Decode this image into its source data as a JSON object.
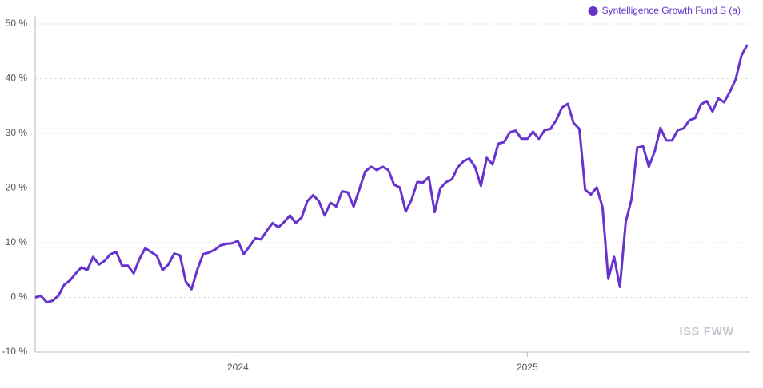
{
  "chart_data": {
    "type": "line",
    "x": [
      2023.3,
      2023.32,
      2023.34,
      2023.36,
      2023.38,
      2023.4,
      2023.42,
      2023.44,
      2023.46,
      2023.48,
      2023.5,
      2023.52,
      2023.54,
      2023.56,
      2023.58,
      2023.6,
      2023.62,
      2023.64,
      2023.66,
      2023.68,
      2023.7,
      2023.72,
      2023.74,
      2023.76,
      2023.78,
      2023.8,
      2023.82,
      2023.84,
      2023.86,
      2023.88,
      2023.9,
      2023.92,
      2023.94,
      2023.96,
      2023.98,
      2024,
      2024.02,
      2024.04,
      2024.06,
      2024.08,
      2024.1,
      2024.12,
      2024.14,
      2024.16,
      2024.18,
      2024.2,
      2024.22,
      2024.24,
      2024.26,
      2024.28,
      2024.3,
      2024.32,
      2024.34,
      2024.36,
      2024.38,
      2024.4,
      2024.42,
      2024.44,
      2024.46,
      2024.48,
      2024.5,
      2024.52,
      2024.54,
      2024.56,
      2024.58,
      2024.6,
      2024.62,
      2024.64,
      2024.66,
      2024.68,
      2024.7,
      2024.72,
      2024.74,
      2024.76,
      2024.78,
      2024.8,
      2024.82,
      2024.84,
      2024.86,
      2024.88,
      2024.9,
      2024.92,
      2024.94,
      2024.96,
      2024.98,
      2025,
      2025.02,
      2025.04,
      2025.06,
      2025.08,
      2025.1,
      2025.12,
      2025.14,
      2025.16,
      2025.18,
      2025.2,
      2025.22,
      2025.24,
      2025.26,
      2025.28,
      2025.3,
      2025.32,
      2025.34,
      2025.36,
      2025.38,
      2025.4,
      2025.42,
      2025.44,
      2025.46,
      2025.48,
      2025.5,
      2025.52,
      2025.54,
      2025.56,
      2025.58,
      2025.6,
      2025.62,
      2025.64,
      2025.66,
      2025.68,
      2025.7,
      2025.72,
      2025.74,
      2025.76
    ],
    "series": [
      {
        "name": "Syntelligence Growth Fund S (a)",
        "color": "#6633cc",
        "values": [
          0.0,
          0.3,
          -0.9,
          -0.6,
          0.3,
          2.3,
          3.1,
          4.4,
          5.5,
          5.0,
          7.4,
          6.0,
          6.7,
          7.9,
          8.3,
          5.8,
          5.8,
          4.4,
          7.0,
          9.0,
          8.3,
          7.6,
          5.0,
          6.0,
          8.0,
          7.7,
          2.9,
          1.5,
          5.1,
          7.9,
          8.2,
          8.7,
          9.5,
          9.8,
          9.9,
          10.3,
          7.9,
          9.3,
          10.8,
          10.6,
          12.2,
          13.6,
          12.8,
          13.8,
          15.0,
          13.6,
          14.6,
          17.6,
          18.7,
          17.6,
          15.0,
          17.3,
          16.6,
          19.4,
          19.2,
          16.6,
          19.8,
          23.0,
          23.9,
          23.3,
          23.9,
          23.3,
          20.6,
          20.1,
          15.7,
          17.8,
          21.1,
          21.0,
          22.0,
          15.6,
          20.0,
          21.1,
          21.6,
          23.8,
          24.9,
          25.4,
          23.8,
          20.4,
          25.5,
          24.3,
          28.1,
          28.4,
          30.2,
          30.5,
          29.0,
          29.0,
          30.3,
          29.0,
          30.6,
          30.8,
          32.4,
          34.7,
          35.4,
          31.9,
          30.8,
          19.7,
          18.8,
          20.1,
          16.5,
          3.4,
          7.4,
          1.9,
          13.8,
          17.9,
          27.4,
          27.6,
          23.9,
          26.7,
          31.0,
          28.7,
          28.7,
          30.6,
          30.9,
          32.4,
          32.8,
          35.3,
          35.9,
          34.0,
          36.4,
          35.7,
          37.6,
          39.9,
          44.2,
          46.2
        ]
      }
    ],
    "xlim": [
      2023.3,
      2025.77
    ],
    "xticks": [
      2024,
      2025
    ],
    "ylim": [
      -10,
      50
    ],
    "yticks": [
      {
        "value": -10,
        "label": "-10 %"
      },
      {
        "value": 0,
        "label": "0 %"
      },
      {
        "value": 10,
        "label": "10 %"
      },
      {
        "value": 20,
        "label": "20 %"
      },
      {
        "value": 30,
        "label": "30 %"
      },
      {
        "value": 40,
        "label": "40 %"
      },
      {
        "value": 50,
        "label": "50 %"
      }
    ],
    "grid": true,
    "legend": "top-right",
    "watermark": "ISS FWW"
  }
}
